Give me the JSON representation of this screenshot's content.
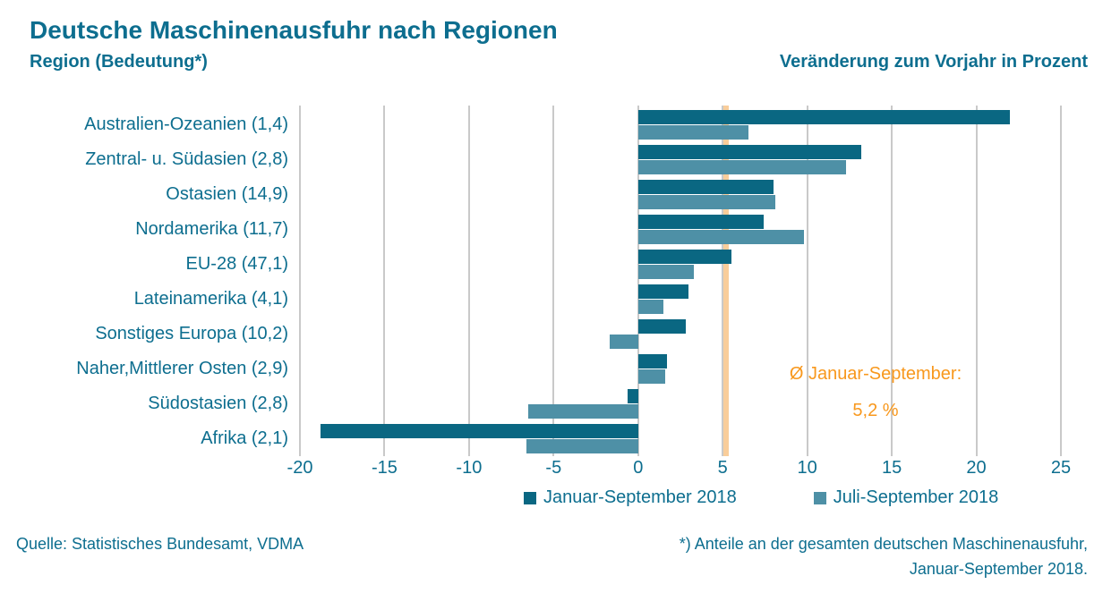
{
  "header": {
    "title": "Deutsche Maschinenausfuhr nach Regionen",
    "subtitle_left": "Region (Bedeutung*)",
    "subtitle_right": "Veränderung zum Vorjahr in Prozent"
  },
  "chart_data": {
    "type": "bar",
    "orientation": "horizontal",
    "title": "Deutsche Maschinenausfuhr nach Regionen",
    "xlabel": "Veränderung zum Vorjahr in Prozent",
    "xlim": [
      -20,
      25
    ],
    "xticks": [
      "-20",
      "-15",
      "-10",
      "-5",
      "0",
      "5",
      "10",
      "15",
      "20",
      "25"
    ],
    "xtick_values": [
      -20,
      -15,
      -10,
      -5,
      0,
      5,
      10,
      15,
      20,
      25
    ],
    "grid": "vertical-on",
    "legend_position": "bottom",
    "categories": [
      "Australien-Ozeanien (1,4)",
      "Zentral- u. Südasien (2,8)",
      "Ostasien (14,9)",
      "Nordamerika (11,7)",
      "EU-28 (47,1)",
      "Lateinamerika (4,1)",
      "Sonstiges Europa (10,2)",
      "Naher,Mittlerer Osten (2,9)",
      "Südostasien (2,8)",
      "Afrika (2,1)"
    ],
    "series": [
      {
        "name": "Januar-September 2018",
        "color": "#0a6782",
        "values": [
          22.0,
          13.2,
          8.0,
          7.4,
          5.5,
          3.0,
          2.8,
          1.7,
          -0.6,
          -18.8
        ]
      },
      {
        "name": "Juli-September 2018",
        "color": "#4e90a6",
        "values": [
          6.5,
          12.3,
          8.1,
          9.8,
          3.3,
          1.5,
          -1.7,
          1.6,
          -6.5,
          -6.6
        ]
      }
    ],
    "reference_line": {
      "value": 5.2,
      "color": "#f9cd9a",
      "label_line1": "Ø Januar-September:",
      "label_line2": "5,2 %",
      "label_color": "#f8981d"
    }
  },
  "footer": {
    "source": "Quelle: Statistisches Bundesamt, VDMA",
    "note_line1": "*) Anteile an der gesamten deutschen Maschinenausfuhr,",
    "note_line2": "Januar-September 2018."
  },
  "colors": {
    "text": "#0d6e8f",
    "grid": "#c9c9c9",
    "background": "#ffffff"
  }
}
